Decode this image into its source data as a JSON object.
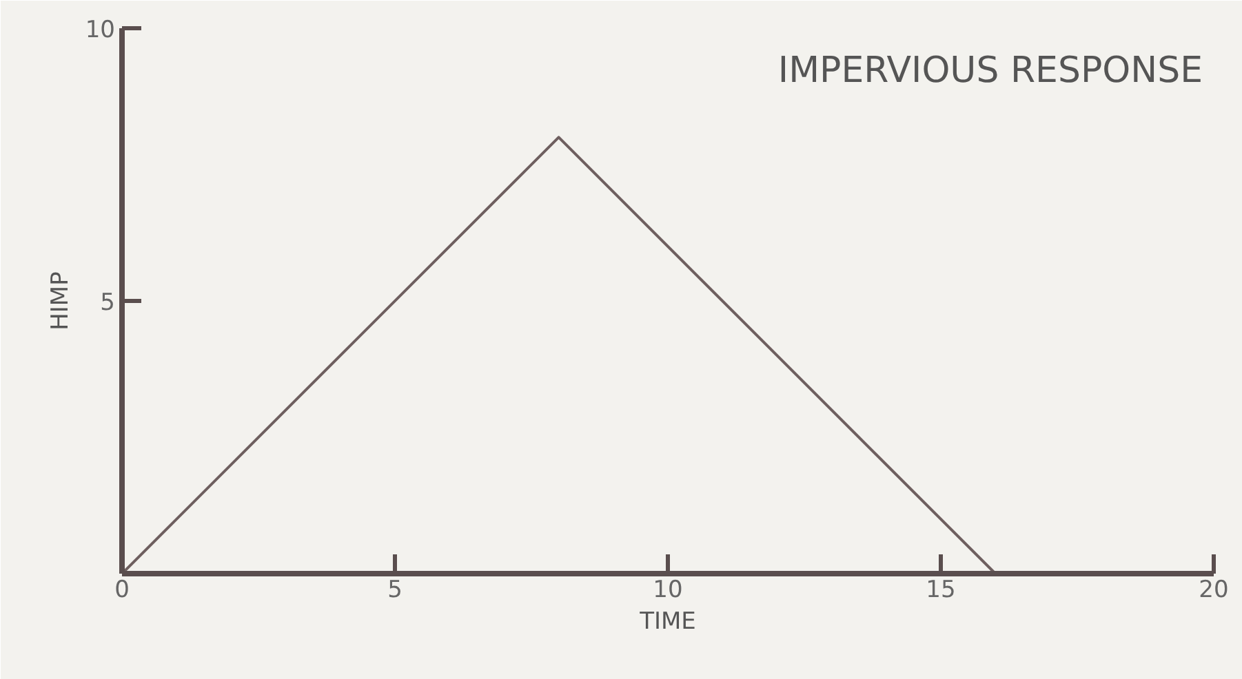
{
  "chart_data": {
    "type": "line",
    "title": "IMPERVIOUS RESPONSE",
    "xlabel": "TIME",
    "ylabel": "HIMP",
    "x": [
      0,
      8,
      16
    ],
    "series": [
      {
        "color": "#6e5f5f",
        "values": [
          0,
          8,
          0
        ]
      }
    ],
    "xlim": [
      0,
      20
    ],
    "ylim": [
      0,
      10
    ],
    "xticks": [
      0,
      5,
      10,
      15,
      20
    ],
    "yticks": [
      5,
      10
    ]
  }
}
